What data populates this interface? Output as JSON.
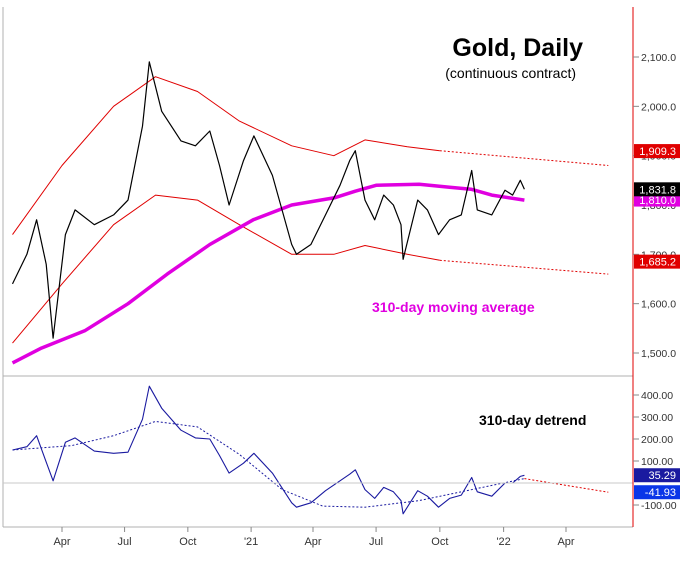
{
  "chart_data": [
    {
      "type": "line",
      "title": "Gold, Daily",
      "subtitle": "(continuous contract)",
      "annotation": "310-day moving average",
      "ylim": [
        1470,
        2200
      ],
      "y_ticks": [
        "2,100.0",
        "2,000.0",
        "1,900.0",
        "1,800.0",
        "1,700.0",
        "1,600.0",
        "1,500.0"
      ],
      "x_tick_labels": [
        "Apr",
        "Jul",
        "Oct",
        "'21",
        "Apr",
        "Jul",
        "Oct",
        "'22",
        "Apr"
      ],
      "value_labels": [
        {
          "text": "1,909.3",
          "role": "upper-band",
          "color": "#e00000"
        },
        {
          "text": "1,831.8",
          "role": "last-price",
          "color": "#000000"
        },
        {
          "text": "1,810.0",
          "role": "moving-average",
          "color": "#e000e0"
        },
        {
          "text": "1,685.2",
          "role": "lower-band",
          "color": "#e00000"
        }
      ],
      "series": [
        {
          "role": "price",
          "color": "#000000",
          "style": "solid",
          "x": [
            "2020-01-20",
            "2020-02-10",
            "2020-02-24",
            "2020-03-09",
            "2020-03-19",
            "2020-04-06",
            "2020-04-20",
            "2020-05-18",
            "2020-06-15",
            "2020-07-06",
            "2020-07-27",
            "2020-08-06",
            "2020-08-24",
            "2020-09-21",
            "2020-10-12",
            "2020-11-02",
            "2020-11-16",
            "2020-11-30",
            "2020-12-21",
            "2021-01-05",
            "2021-02-01",
            "2021-03-01",
            "2021-03-08",
            "2021-03-29",
            "2021-04-19",
            "2021-05-10",
            "2021-05-24",
            "2021-06-01",
            "2021-06-15",
            "2021-06-29",
            "2021-07-12",
            "2021-07-26",
            "2021-08-06",
            "2021-08-09",
            "2021-08-30",
            "2021-09-13",
            "2021-09-29",
            "2021-10-15",
            "2021-11-01",
            "2021-11-16",
            "2021-11-24",
            "2021-12-15",
            "2022-01-03",
            "2022-01-14",
            "2022-01-25",
            "2022-01-31"
          ],
          "y": [
            1640,
            1700,
            1770,
            1680,
            1530,
            1740,
            1790,
            1760,
            1780,
            1810,
            1960,
            2090,
            1990,
            1930,
            1920,
            1950,
            1880,
            1800,
            1890,
            1940,
            1860,
            1720,
            1700,
            1720,
            1780,
            1840,
            1890,
            1910,
            1810,
            1770,
            1820,
            1800,
            1760,
            1690,
            1810,
            1790,
            1740,
            1770,
            1780,
            1870,
            1790,
            1780,
            1830,
            1820,
            1850,
            1832
          ]
        },
        {
          "role": "310-day moving average",
          "color": "#e000e0",
          "style": "solid",
          "x": [
            "2020-01-20",
            "2020-03-02",
            "2020-05-04",
            "2020-07-06",
            "2020-09-01",
            "2020-11-02",
            "2021-01-04",
            "2021-03-01",
            "2021-05-03",
            "2021-06-01",
            "2021-07-01",
            "2021-09-01",
            "2021-10-15",
            "2021-11-15",
            "2021-12-15",
            "2022-01-31"
          ],
          "y": [
            1480,
            1510,
            1545,
            1600,
            1660,
            1720,
            1770,
            1800,
            1815,
            1828,
            1840,
            1842,
            1836,
            1832,
            1820,
            1810
          ]
        },
        {
          "role": "upper band",
          "color": "#e00000",
          "style": "solid",
          "x": [
            "2020-01-20",
            "2020-04-01",
            "2020-06-15",
            "2020-08-15",
            "2020-10-15",
            "2020-12-15",
            "2021-03-01",
            "2021-05-01",
            "2021-06-15",
            "2021-08-15",
            "2021-10-01"
          ],
          "y": [
            1740,
            1880,
            2000,
            2060,
            2030,
            1970,
            1920,
            1900,
            1932,
            1918,
            1910
          ]
        },
        {
          "role": "upper band projection",
          "color": "#e00000",
          "style": "dashed",
          "x": [
            "2021-10-01",
            "2022-06-01"
          ],
          "y": [
            1910,
            1880
          ]
        },
        {
          "role": "lower band",
          "color": "#e00000",
          "style": "solid",
          "x": [
            "2020-01-20",
            "2020-04-01",
            "2020-06-15",
            "2020-08-15",
            "2020-10-15",
            "2020-12-15",
            "2021-03-01",
            "2021-05-01",
            "2021-06-15",
            "2021-08-15",
            "2021-10-01"
          ],
          "y": [
            1520,
            1640,
            1760,
            1820,
            1810,
            1760,
            1700,
            1700,
            1718,
            1700,
            1688
          ]
        },
        {
          "role": "lower band projection",
          "color": "#e00000",
          "style": "dashed",
          "x": [
            "2021-10-01",
            "2022-06-01"
          ],
          "y": [
            1688,
            1660
          ]
        }
      ]
    },
    {
      "type": "line",
      "title": "310-day detrend",
      "ylim": [
        -200,
        480
      ],
      "y_ticks": [
        "400.00",
        "300.00",
        "200.00",
        "100.00",
        "-100.00"
      ],
      "x_tick_labels": [
        "Apr",
        "Jul",
        "Oct",
        "'21",
        "Apr",
        "Jul",
        "Oct",
        "'22",
        "Apr"
      ],
      "value_labels": [
        {
          "text": "35.29",
          "role": "detrend",
          "color": "#1a1aa0"
        },
        {
          "text": "-41.93",
          "role": "cycle",
          "color": "#0a36e8"
        }
      ],
      "series": [
        {
          "role": "detrend",
          "color": "#1a1aa0",
          "style": "solid",
          "x": [
            "2020-01-20",
            "2020-02-10",
            "2020-02-24",
            "2020-03-09",
            "2020-03-19",
            "2020-04-06",
            "2020-04-20",
            "2020-05-18",
            "2020-06-15",
            "2020-07-06",
            "2020-07-27",
            "2020-08-06",
            "2020-08-24",
            "2020-09-21",
            "2020-10-12",
            "2020-11-02",
            "2020-11-16",
            "2020-11-30",
            "2020-12-21",
            "2021-01-05",
            "2021-02-01",
            "2021-03-01",
            "2021-03-08",
            "2021-03-29",
            "2021-04-19",
            "2021-05-10",
            "2021-05-24",
            "2021-06-01",
            "2021-06-15",
            "2021-06-29",
            "2021-07-12",
            "2021-07-26",
            "2021-08-06",
            "2021-08-09",
            "2021-08-30",
            "2021-09-13",
            "2021-09-29",
            "2021-10-15",
            "2021-11-01",
            "2021-11-16",
            "2021-11-24",
            "2021-12-15",
            "2022-01-03",
            "2022-01-14",
            "2022-01-25",
            "2022-01-31"
          ],
          "y": [
            150,
            165,
            215,
            95,
            10,
            185,
            205,
            145,
            135,
            140,
            290,
            440,
            340,
            240,
            205,
            200,
            125,
            45,
            90,
            135,
            45,
            -90,
            -110,
            -90,
            -35,
            10,
            40,
            60,
            -30,
            -70,
            -20,
            -40,
            -80,
            -140,
            -35,
            -60,
            -110,
            -70,
            -55,
            25,
            -40,
            -60,
            0,
            0,
            30,
            35
          ]
        },
        {
          "role": "cycle projection",
          "color": "#1a1aa0",
          "style": "dashed",
          "x": [
            "2020-01-20",
            "2020-04-15",
            "2020-06-15",
            "2020-08-15",
            "2020-10-15",
            "2020-12-15",
            "2021-02-15",
            "2021-04-15",
            "2021-06-15",
            "2021-09-01",
            "2021-11-01",
            "2022-01-31"
          ],
          "y": [
            150,
            170,
            215,
            280,
            255,
            130,
            -30,
            -105,
            -110,
            -80,
            -40,
            20
          ]
        },
        {
          "role": "cycle projection ahead",
          "color": "#e00000",
          "style": "dashed",
          "x": [
            "2022-01-31",
            "2022-06-01"
          ],
          "y": [
            20,
            -42
          ]
        }
      ]
    }
  ]
}
